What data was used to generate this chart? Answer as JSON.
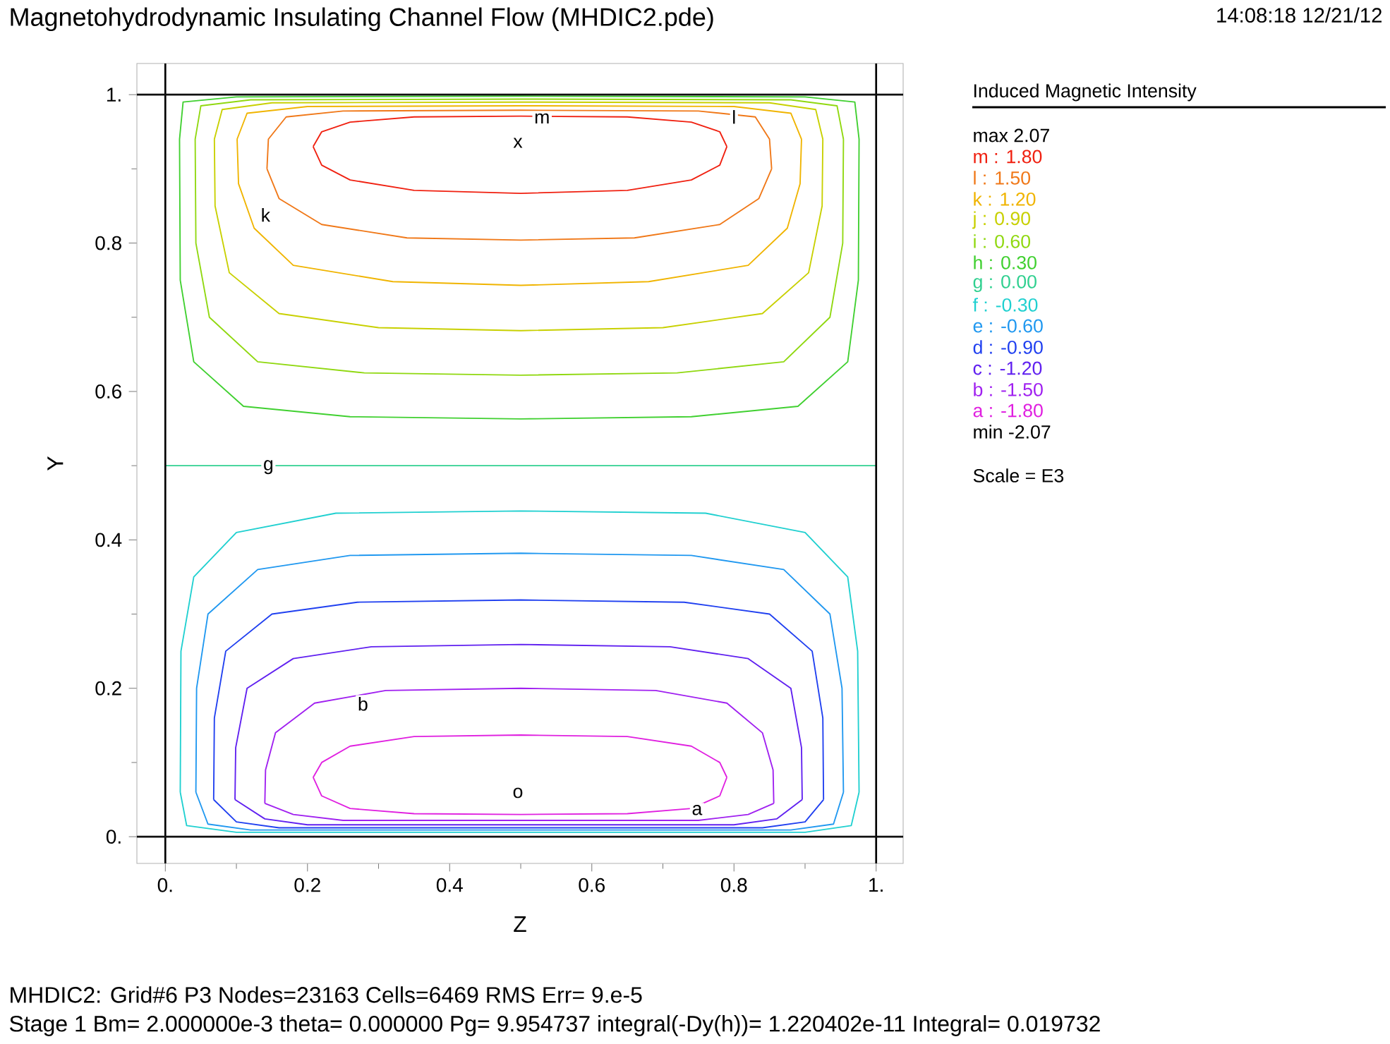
{
  "chart_data": {
    "type": "line",
    "title": "Magnetohydrodynamic Insulating Channel Flow (MHDIC2.pde)",
    "xlabel": "Z",
    "ylabel": "Y",
    "legend_title": "Induced Magnetic Intensity",
    "legend": "right",
    "marker": "none",
    "line_style": "solid",
    "grid": false,
    "xlim": [
      -0.04,
      1.038
    ],
    "ylim": [
      -0.036,
      1.042
    ],
    "xticks": [
      {
        "value": 0,
        "label": "0."
      },
      0.2,
      0.4,
      0.6,
      0.8,
      {
        "value": 1,
        "label": "1."
      }
    ],
    "yticks": [
      {
        "value": 0,
        "label": "0."
      },
      0.2,
      0.4,
      0.6,
      0.8,
      {
        "value": 1,
        "label": "1."
      }
    ],
    "series": [
      {
        "name": "m : 1.80",
        "color": "#f02010",
        "x": [
          0.208,
          0.22,
          0.26,
          0.35,
          0.5,
          0.65,
          0.74,
          0.78,
          0.79,
          null,
          0.208,
          0.22,
          0.26,
          0.35,
          0.5,
          0.65,
          0.74,
          0.78,
          0.79
        ],
        "values": [
          0.93,
          0.95,
          0.963,
          0.97,
          0.971,
          0.97,
          0.963,
          0.95,
          0.93,
          null,
          0.93,
          0.905,
          0.885,
          0.871,
          0.867,
          0.871,
          0.885,
          0.905,
          0.93
        ]
      },
      {
        "name": "l : 1.50",
        "color": "#f07818",
        "x": [
          0.143,
          0.145,
          0.17,
          0.25,
          0.5,
          0.75,
          0.83,
          0.85,
          0.853,
          null,
          0.143,
          0.16,
          0.22,
          0.34,
          0.5,
          0.66,
          0.78,
          0.835,
          0.853
        ],
        "values": [
          0.9,
          0.94,
          0.97,
          0.978,
          0.979,
          0.978,
          0.97,
          0.94,
          0.9,
          null,
          0.9,
          0.86,
          0.825,
          0.807,
          0.804,
          0.807,
          0.825,
          0.86,
          0.9
        ]
      },
      {
        "name": "k : 1.20",
        "color": "#f0b400",
        "x": [
          0.101,
          0.115,
          0.2,
          0.5,
          0.8,
          0.88,
          0.895,
          null,
          0.101,
          0.103,
          0.125,
          0.18,
          0.32,
          0.5,
          0.68,
          0.82,
          0.875,
          0.893,
          0.895
        ],
        "values": [
          0.94,
          0.975,
          0.984,
          0.985,
          0.984,
          0.975,
          0.94,
          null,
          0.94,
          0.88,
          0.82,
          0.77,
          0.748,
          0.743,
          0.748,
          0.77,
          0.82,
          0.88,
          0.94
        ]
      },
      {
        "name": "j : 0.90",
        "color": "#c8d000",
        "x": [
          0.069,
          0.08,
          0.15,
          0.5,
          0.85,
          0.915,
          0.925,
          null,
          0.069,
          0.07,
          0.09,
          0.16,
          0.3,
          0.5,
          0.7,
          0.84,
          0.905,
          0.924,
          0.925
        ],
        "values": [
          0.94,
          0.98,
          0.989,
          0.99,
          0.989,
          0.98,
          0.94,
          null,
          0.94,
          0.85,
          0.76,
          0.705,
          0.686,
          0.682,
          0.686,
          0.705,
          0.76,
          0.85,
          0.94
        ]
      },
      {
        "name": "i : 0.60",
        "color": "#90d810",
        "x": [
          0.042,
          0.05,
          0.12,
          0.5,
          0.88,
          0.945,
          0.954,
          null,
          0.042,
          0.043,
          0.062,
          0.13,
          0.28,
          0.5,
          0.72,
          0.87,
          0.935,
          0.953,
          0.954
        ],
        "values": [
          0.94,
          0.985,
          0.993,
          0.994,
          0.993,
          0.985,
          0.94,
          null,
          0.94,
          0.8,
          0.7,
          0.64,
          0.625,
          0.622,
          0.625,
          0.64,
          0.7,
          0.8,
          0.94
        ]
      },
      {
        "name": "h : 0.30",
        "color": "#40d030",
        "x": [
          0.02,
          0.025,
          0.1,
          0.5,
          0.9,
          0.97,
          0.976,
          null,
          0.02,
          0.021,
          0.04,
          0.11,
          0.26,
          0.5,
          0.74,
          0.89,
          0.96,
          0.975,
          0.976
        ],
        "values": [
          0.94,
          0.99,
          0.997,
          0.998,
          0.997,
          0.99,
          0.94,
          null,
          0.94,
          0.75,
          0.64,
          0.58,
          0.566,
          0.563,
          0.566,
          0.58,
          0.64,
          0.75,
          0.94
        ]
      },
      {
        "name": "g : 0.00",
        "color": "#30d090",
        "x": [
          0,
          1
        ],
        "values": [
          0.5,
          0.5
        ]
      },
      {
        "name": "f : -0.30",
        "color": "#20d0d0",
        "x": [
          0.021,
          0.022,
          0.04,
          0.1,
          0.24,
          0.5,
          0.76,
          0.9,
          0.96,
          0.974,
          0.976,
          null,
          0.021,
          0.03,
          0.1,
          0.9,
          0.965,
          0.976
        ],
        "values": [
          0.06,
          0.25,
          0.35,
          0.41,
          0.436,
          0.439,
          0.436,
          0.41,
          0.35,
          0.25,
          0.06,
          null,
          0.06,
          0.015,
          0.006,
          0.006,
          0.015,
          0.06
        ]
      },
      {
        "name": "e : -0.60",
        "color": "#2098f0",
        "x": [
          0.043,
          0.044,
          0.06,
          0.13,
          0.26,
          0.5,
          0.74,
          0.87,
          0.935,
          0.952,
          0.954,
          null,
          0.043,
          0.06,
          0.12,
          0.88,
          0.94,
          0.954
        ],
        "values": [
          0.06,
          0.2,
          0.3,
          0.36,
          0.379,
          0.382,
          0.379,
          0.36,
          0.3,
          0.2,
          0.06,
          null,
          0.06,
          0.017,
          0.009,
          0.009,
          0.017,
          0.06
        ]
      },
      {
        "name": "d : -0.90",
        "color": "#2040f0",
        "x": [
          0.068,
          0.069,
          0.085,
          0.15,
          0.27,
          0.5,
          0.73,
          0.85,
          0.91,
          0.925,
          0.926,
          null,
          0.068,
          0.1,
          0.16,
          0.84,
          0.9,
          0.926
        ],
        "values": [
          0.05,
          0.16,
          0.25,
          0.3,
          0.316,
          0.319,
          0.316,
          0.3,
          0.25,
          0.16,
          0.05,
          null,
          0.05,
          0.02,
          0.012,
          0.012,
          0.02,
          0.05
        ]
      },
      {
        "name": "c : -1.20",
        "color": "#6020f0",
        "x": [
          0.098,
          0.099,
          0.115,
          0.18,
          0.29,
          0.5,
          0.71,
          0.82,
          0.88,
          0.895,
          0.896,
          null,
          0.098,
          0.14,
          0.2,
          0.8,
          0.86,
          0.896
        ],
        "values": [
          0.05,
          0.12,
          0.2,
          0.24,
          0.256,
          0.259,
          0.256,
          0.24,
          0.2,
          0.12,
          0.05,
          null,
          0.05,
          0.024,
          0.016,
          0.016,
          0.024,
          0.05
        ]
      },
      {
        "name": "b : -1.50",
        "color": "#a020f0",
        "x": [
          0.14,
          0.141,
          0.155,
          0.21,
          0.31,
          0.5,
          0.69,
          0.79,
          0.84,
          0.855,
          0.856,
          null,
          0.14,
          0.18,
          0.25,
          0.75,
          0.82,
          0.856
        ],
        "values": [
          0.045,
          0.09,
          0.14,
          0.18,
          0.197,
          0.2,
          0.197,
          0.18,
          0.14,
          0.09,
          0.045,
          null,
          0.045,
          0.03,
          0.022,
          0.022,
          0.03,
          0.045
        ]
      },
      {
        "name": "a : -1.80",
        "color": "#e020e0",
        "x": [
          0.208,
          0.22,
          0.26,
          0.35,
          0.5,
          0.65,
          0.74,
          0.78,
          0.79,
          null,
          0.208,
          0.22,
          0.26,
          0.35,
          0.5,
          0.65,
          0.74,
          0.78,
          0.79
        ],
        "values": [
          0.08,
          0.1,
          0.122,
          0.135,
          0.137,
          0.135,
          0.122,
          0.1,
          0.08,
          null,
          0.08,
          0.055,
          0.038,
          0.031,
          0.03,
          0.031,
          0.038,
          0.055,
          0.08
        ]
      }
    ],
    "ref_lines": [
      {
        "axis": "x",
        "value": 0,
        "color": "#000000"
      },
      {
        "axis": "x",
        "value": 1,
        "color": "#000000"
      },
      {
        "axis": "y",
        "value": 0,
        "color": "#101010"
      },
      {
        "axis": "y",
        "value": 1,
        "color": "#101010"
      }
    ],
    "annotations": [
      "14:08:18 12/21/12",
      "max 2.07",
      "min -2.07",
      "Scale = E3",
      "MHDIC2:  Grid#6  P3  Nodes=23163 Cells=6469 RMS Err= 9.e-5",
      "Stage 1  Bm=  2.000000e-3  theta=  0.000000  Pg=  9.954737  integral(-Dy(h))=  1.220402e-11  Integral=  0.019732",
      {
        "text": "m",
        "x": 0.53,
        "y": 0.968
      },
      {
        "text": "l",
        "x": 0.8,
        "y": 0.97
      },
      {
        "text": "k",
        "x": 0.141,
        "y": 0.838
      },
      {
        "text": "g",
        "x": 0.145,
        "y": 0.498
      },
      {
        "text": "b",
        "x": 0.278,
        "y": 0.179
      },
      {
        "text": "a",
        "x": 0.748,
        "y": 0.036
      },
      {
        "text": "x",
        "x": 0.496,
        "y": 0.935
      },
      {
        "text": "o",
        "x": 0.496,
        "y": 0.059
      }
    ]
  }
}
